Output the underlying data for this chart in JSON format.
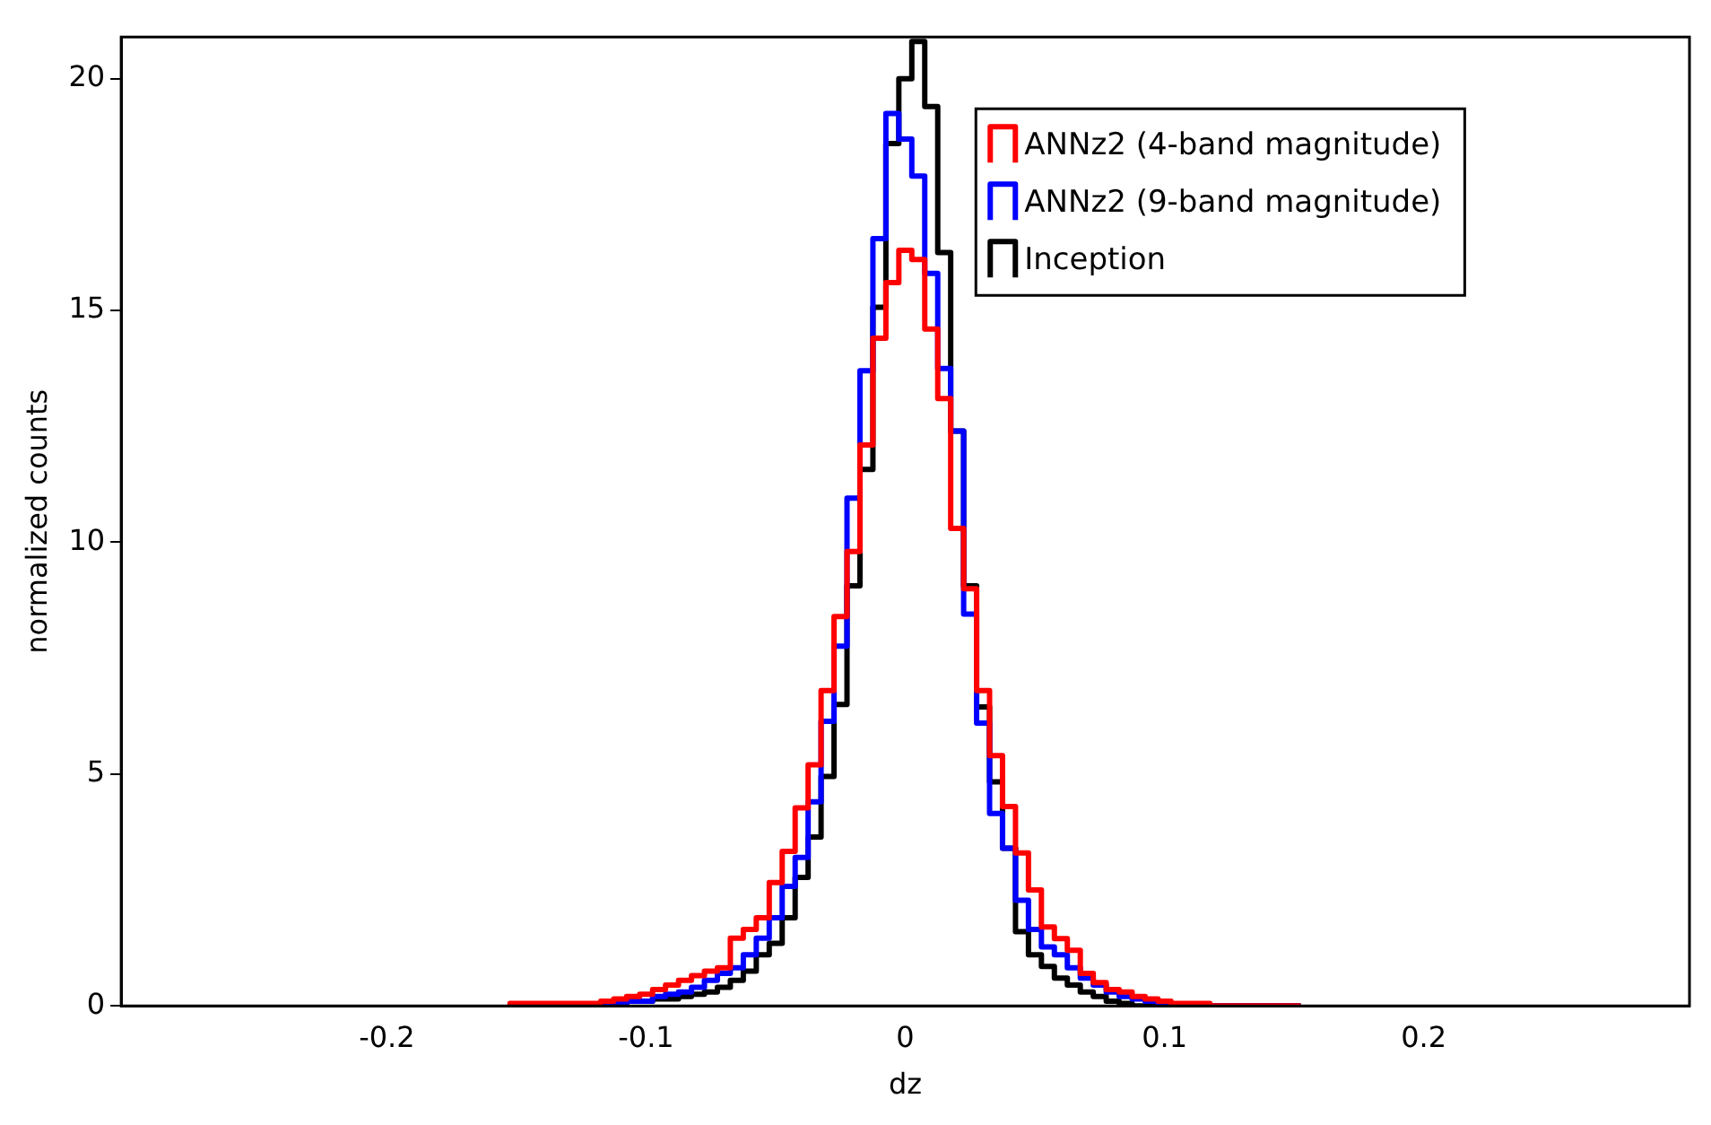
{
  "chart_data": {
    "type": "histogram",
    "xlabel": "dz",
    "ylabel": "normalized counts",
    "bins": [
      -0.1525,
      -0.1475,
      -0.1425,
      -0.1375,
      -0.1325,
      -0.1275,
      -0.1225,
      -0.1175,
      -0.1125,
      -0.1075,
      -0.1025,
      -0.0975,
      -0.0925,
      -0.0875,
      -0.0825,
      -0.0775,
      -0.0725,
      -0.0675,
      -0.0625,
      -0.0575,
      -0.0525,
      -0.0475,
      -0.0425,
      -0.0375,
      -0.0325,
      -0.0275,
      -0.0225,
      -0.0175,
      -0.0125,
      -0.0075,
      -0.0025,
      0.0025,
      0.0075,
      0.0125,
      0.0175,
      0.0225,
      0.0275,
      0.0325,
      0.0375,
      0.0425,
      0.0475,
      0.0525,
      0.0575,
      0.0625,
      0.0675,
      0.0725,
      0.0775,
      0.0825,
      0.0875,
      0.0925,
      0.0975,
      0.1025,
      0.1075,
      0.1125,
      0.1175,
      0.1225,
      0.1275,
      0.1325,
      0.1375,
      0.1425,
      0.1475,
      0.1525
    ],
    "series": [
      {
        "name": "ANNz2 (4-band magnitude)",
        "color": "#ff0000",
        "values": [
          0.05,
          0.05,
          0.05,
          0.05,
          0.05,
          0.05,
          0.05,
          0.1,
          0.15,
          0.2,
          0.25,
          0.35,
          0.45,
          0.55,
          0.65,
          0.75,
          0.82,
          1.46,
          1.65,
          1.9,
          2.66,
          3.33,
          4.27,
          5.2,
          6.8,
          8.4,
          9.8,
          12.1,
          14.4,
          15.6,
          16.3,
          16.1,
          14.6,
          13.1,
          10.3,
          9.0,
          6.8,
          5.4,
          4.3,
          3.3,
          2.5,
          1.7,
          1.45,
          1.2,
          0.7,
          0.5,
          0.35,
          0.3,
          0.2,
          0.15,
          0.1,
          0.05,
          0.05,
          0.05,
          0,
          0,
          0,
          0,
          0,
          0,
          0
        ]
      },
      {
        "name": "ANNz2 (9-band magnitude)",
        "color": "#0000ff",
        "values": [
          0,
          0,
          0,
          0,
          0,
          0,
          0,
          0,
          0.05,
          0.1,
          0.1,
          0.2,
          0.25,
          0.3,
          0.4,
          0.55,
          0.7,
          0.82,
          1.1,
          1.46,
          1.9,
          2.58,
          3.2,
          4.4,
          6.14,
          7.76,
          10.95,
          13.7,
          16.55,
          19.25,
          18.7,
          17.9,
          15.8,
          13.75,
          12.4,
          8.45,
          6.1,
          4.15,
          3.4,
          2.28,
          1.65,
          1.27,
          1.1,
          0.82,
          0.6,
          0.45,
          0.3,
          0.2,
          0.15,
          0.1,
          0.05,
          0,
          0,
          0,
          0,
          0,
          0,
          0,
          0,
          0,
          0
        ]
      },
      {
        "name": "Inception",
        "color": "#000000",
        "values": [
          0,
          0,
          0,
          0,
          0,
          0,
          0,
          0,
          0,
          0.1,
          0.1,
          0.15,
          0.15,
          0.2,
          0.25,
          0.3,
          0.4,
          0.55,
          0.75,
          1.1,
          1.35,
          1.9,
          2.77,
          3.64,
          4.95,
          6.5,
          9.06,
          11.57,
          15.07,
          18.6,
          20.0,
          20.8,
          19.4,
          16.25,
          12.4,
          9.06,
          6.45,
          4.83,
          3.4,
          1.6,
          1.1,
          0.85,
          0.6,
          0.45,
          0.3,
          0.2,
          0.1,
          0.05,
          0,
          0,
          0,
          0,
          0,
          0,
          0,
          0,
          0,
          0,
          0,
          0,
          0
        ]
      }
    ],
    "xlim": [
      -0.3025,
      0.3025
    ],
    "xticks": [
      -0.2,
      -0.1,
      0,
      0.1,
      0.2
    ],
    "ylim": [
      0,
      20.9
    ],
    "yticks": [
      0,
      5,
      10,
      15,
      20
    ],
    "grid": false,
    "legend": "top right"
  }
}
